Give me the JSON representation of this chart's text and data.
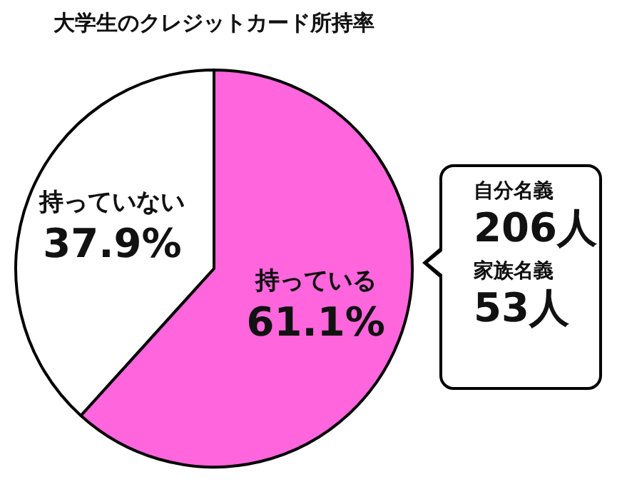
{
  "chart_data": {
    "type": "pie",
    "title": "大学生のクレジットカード所持率",
    "categories": [
      "持っている",
      "持っていない"
    ],
    "values": [
      61.1,
      37.9
    ],
    "value_labels": [
      "61.1%",
      "37.9%"
    ],
    "colors": [
      "#ff66dd",
      "#ffffff"
    ],
    "legend": false,
    "annotations": [
      "自分名義",
      "206人",
      "家族名義",
      "53人"
    ]
  }
}
